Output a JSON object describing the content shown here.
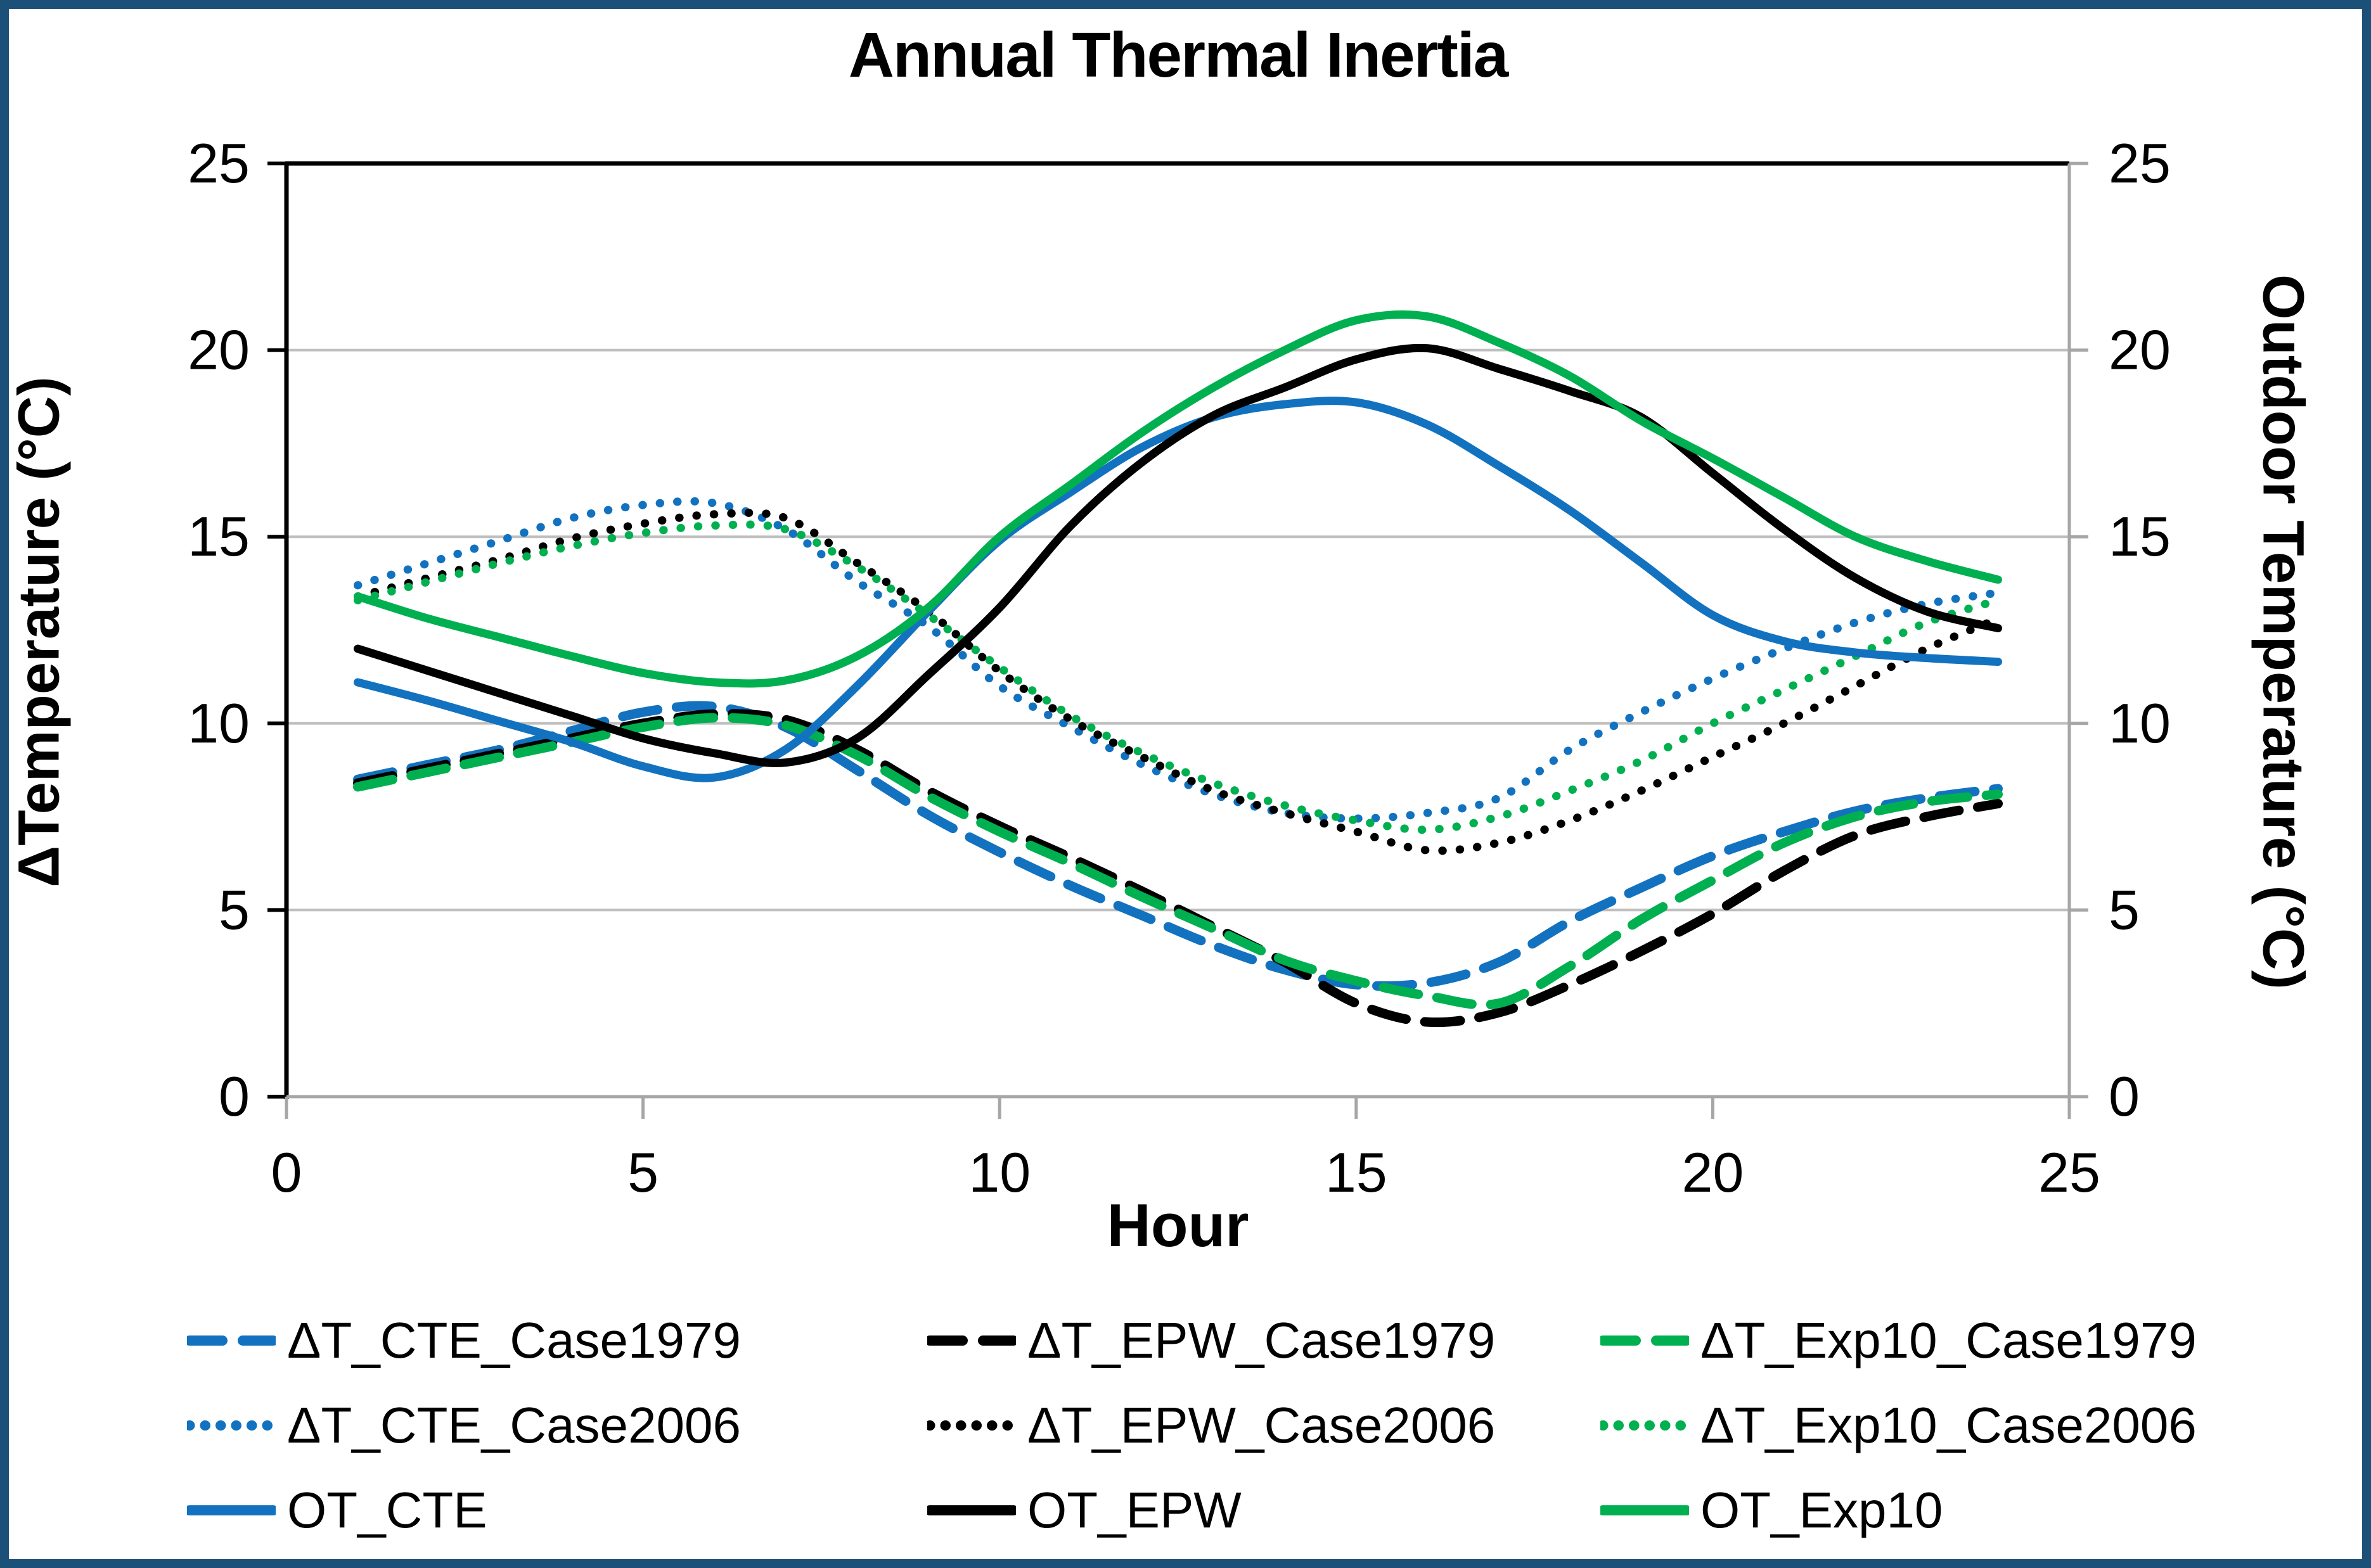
{
  "frame": {
    "border_color": "#1B5078"
  },
  "chart_data": {
    "type": "line",
    "title": "Annual Thermal Inertia",
    "xlabel": "Hour",
    "ylabel_left": "ΔTemperature (°C)",
    "ylabel_right": "Outdoor Temperature (°C)",
    "xlim": [
      0,
      25
    ],
    "ylim_left": [
      0,
      25
    ],
    "ylim_right": [
      0,
      25
    ],
    "xticks": [
      0,
      5,
      10,
      15,
      20,
      25
    ],
    "yticks": [
      0,
      5,
      10,
      15,
      20,
      25
    ],
    "grid": "horizontal",
    "grid_color": "#BFBFBF",
    "axis_color_primary": "#000000",
    "axis_color_secondary": "#A6A6A6",
    "legend_position": "bottom",
    "x_hours": [
      1,
      2,
      3,
      4,
      5,
      6,
      7,
      8,
      9,
      10,
      11,
      12,
      13,
      14,
      15,
      16,
      17,
      18,
      19,
      20,
      21,
      22,
      23,
      24
    ],
    "series": [
      {
        "name": "ΔT_CTE_Case1979",
        "color": "#1272BF",
        "style": "dashed",
        "axis": "left",
        "values": [
          8.5,
          8.9,
          9.3,
          9.8,
          10.3,
          10.45,
          9.9,
          8.75,
          7.55,
          6.55,
          5.65,
          4.85,
          4.05,
          3.4,
          3.0,
          3.05,
          3.6,
          4.7,
          5.6,
          6.45,
          7.1,
          7.65,
          8.0,
          8.25
        ]
      },
      {
        "name": "ΔT_EPW_Case1979",
        "color": "#000000",
        "style": "dashed",
        "axis": "left",
        "values": [
          8.4,
          8.8,
          9.2,
          9.6,
          10.0,
          10.25,
          10.1,
          9.3,
          8.2,
          7.25,
          6.4,
          5.5,
          4.55,
          3.6,
          2.5,
          2.0,
          2.25,
          3.0,
          3.9,
          4.9,
          6.05,
          7.0,
          7.5,
          7.85
        ]
      },
      {
        "name": "ΔT_Exp10_Case1979",
        "color": "#00B050",
        "style": "dashed",
        "axis": "left",
        "values": [
          8.3,
          8.7,
          9.1,
          9.5,
          9.9,
          10.15,
          9.95,
          9.15,
          8.05,
          7.1,
          6.25,
          5.35,
          4.5,
          3.65,
          3.1,
          2.7,
          2.5,
          3.5,
          4.75,
          5.8,
          6.8,
          7.5,
          7.9,
          8.1
        ]
      },
      {
        "name": "ΔT_CTE_Case2006",
        "color": "#1272BF",
        "style": "dotted",
        "axis": "left",
        "values": [
          13.7,
          14.3,
          14.9,
          15.5,
          15.85,
          15.9,
          15.2,
          13.8,
          12.6,
          11.0,
          9.9,
          8.9,
          8.1,
          7.6,
          7.45,
          7.6,
          8.0,
          9.3,
          10.3,
          11.2,
          12.0,
          12.7,
          13.2,
          13.5
        ]
      },
      {
        "name": "ΔT_EPW_Case2006",
        "color": "#000000",
        "style": "dotted",
        "axis": "left",
        "values": [
          13.4,
          13.9,
          14.4,
          14.95,
          15.35,
          15.6,
          15.5,
          14.3,
          13.0,
          11.4,
          10.1,
          9.1,
          8.2,
          7.6,
          7.1,
          6.6,
          6.8,
          7.4,
          8.2,
          9.1,
          10.0,
          11.0,
          12.0,
          12.8
        ]
      },
      {
        "name": "ΔT_Exp10_Case2006",
        "color": "#00B050",
        "style": "dotted",
        "axis": "left",
        "values": [
          13.3,
          13.8,
          14.3,
          14.75,
          15.1,
          15.3,
          15.2,
          14.2,
          12.9,
          11.5,
          10.2,
          9.2,
          8.4,
          7.8,
          7.4,
          7.15,
          7.5,
          8.2,
          9.0,
          10.0,
          10.9,
          11.8,
          12.7,
          13.3
        ]
      },
      {
        "name": "OT_CTE",
        "color": "#1272BF",
        "style": "solid",
        "axis": "right",
        "values": [
          11.1,
          10.6,
          10.05,
          9.5,
          8.85,
          8.55,
          9.3,
          11.0,
          13.0,
          14.9,
          16.2,
          17.4,
          18.2,
          18.55,
          18.6,
          18.0,
          16.9,
          15.7,
          14.3,
          12.9,
          12.2,
          11.9,
          11.75,
          11.65
        ]
      },
      {
        "name": "OT_EPW",
        "color": "#000000",
        "style": "solid",
        "axis": "right",
        "values": [
          12.0,
          11.4,
          10.8,
          10.2,
          9.6,
          9.2,
          8.95,
          9.6,
          11.3,
          13.1,
          15.3,
          17.0,
          18.25,
          19.0,
          19.75,
          20.05,
          19.5,
          18.9,
          18.2,
          16.7,
          15.2,
          13.9,
          13.0,
          12.55
        ]
      },
      {
        "name": "OT_Exp10",
        "color": "#00B050",
        "style": "solid",
        "axis": "right",
        "values": [
          13.4,
          12.8,
          12.3,
          11.8,
          11.35,
          11.1,
          11.15,
          11.8,
          13.1,
          15.0,
          16.4,
          17.8,
          19.0,
          20.0,
          20.8,
          20.9,
          20.2,
          19.3,
          18.1,
          17.1,
          16.05,
          15.0,
          14.35,
          13.85
        ]
      }
    ]
  }
}
